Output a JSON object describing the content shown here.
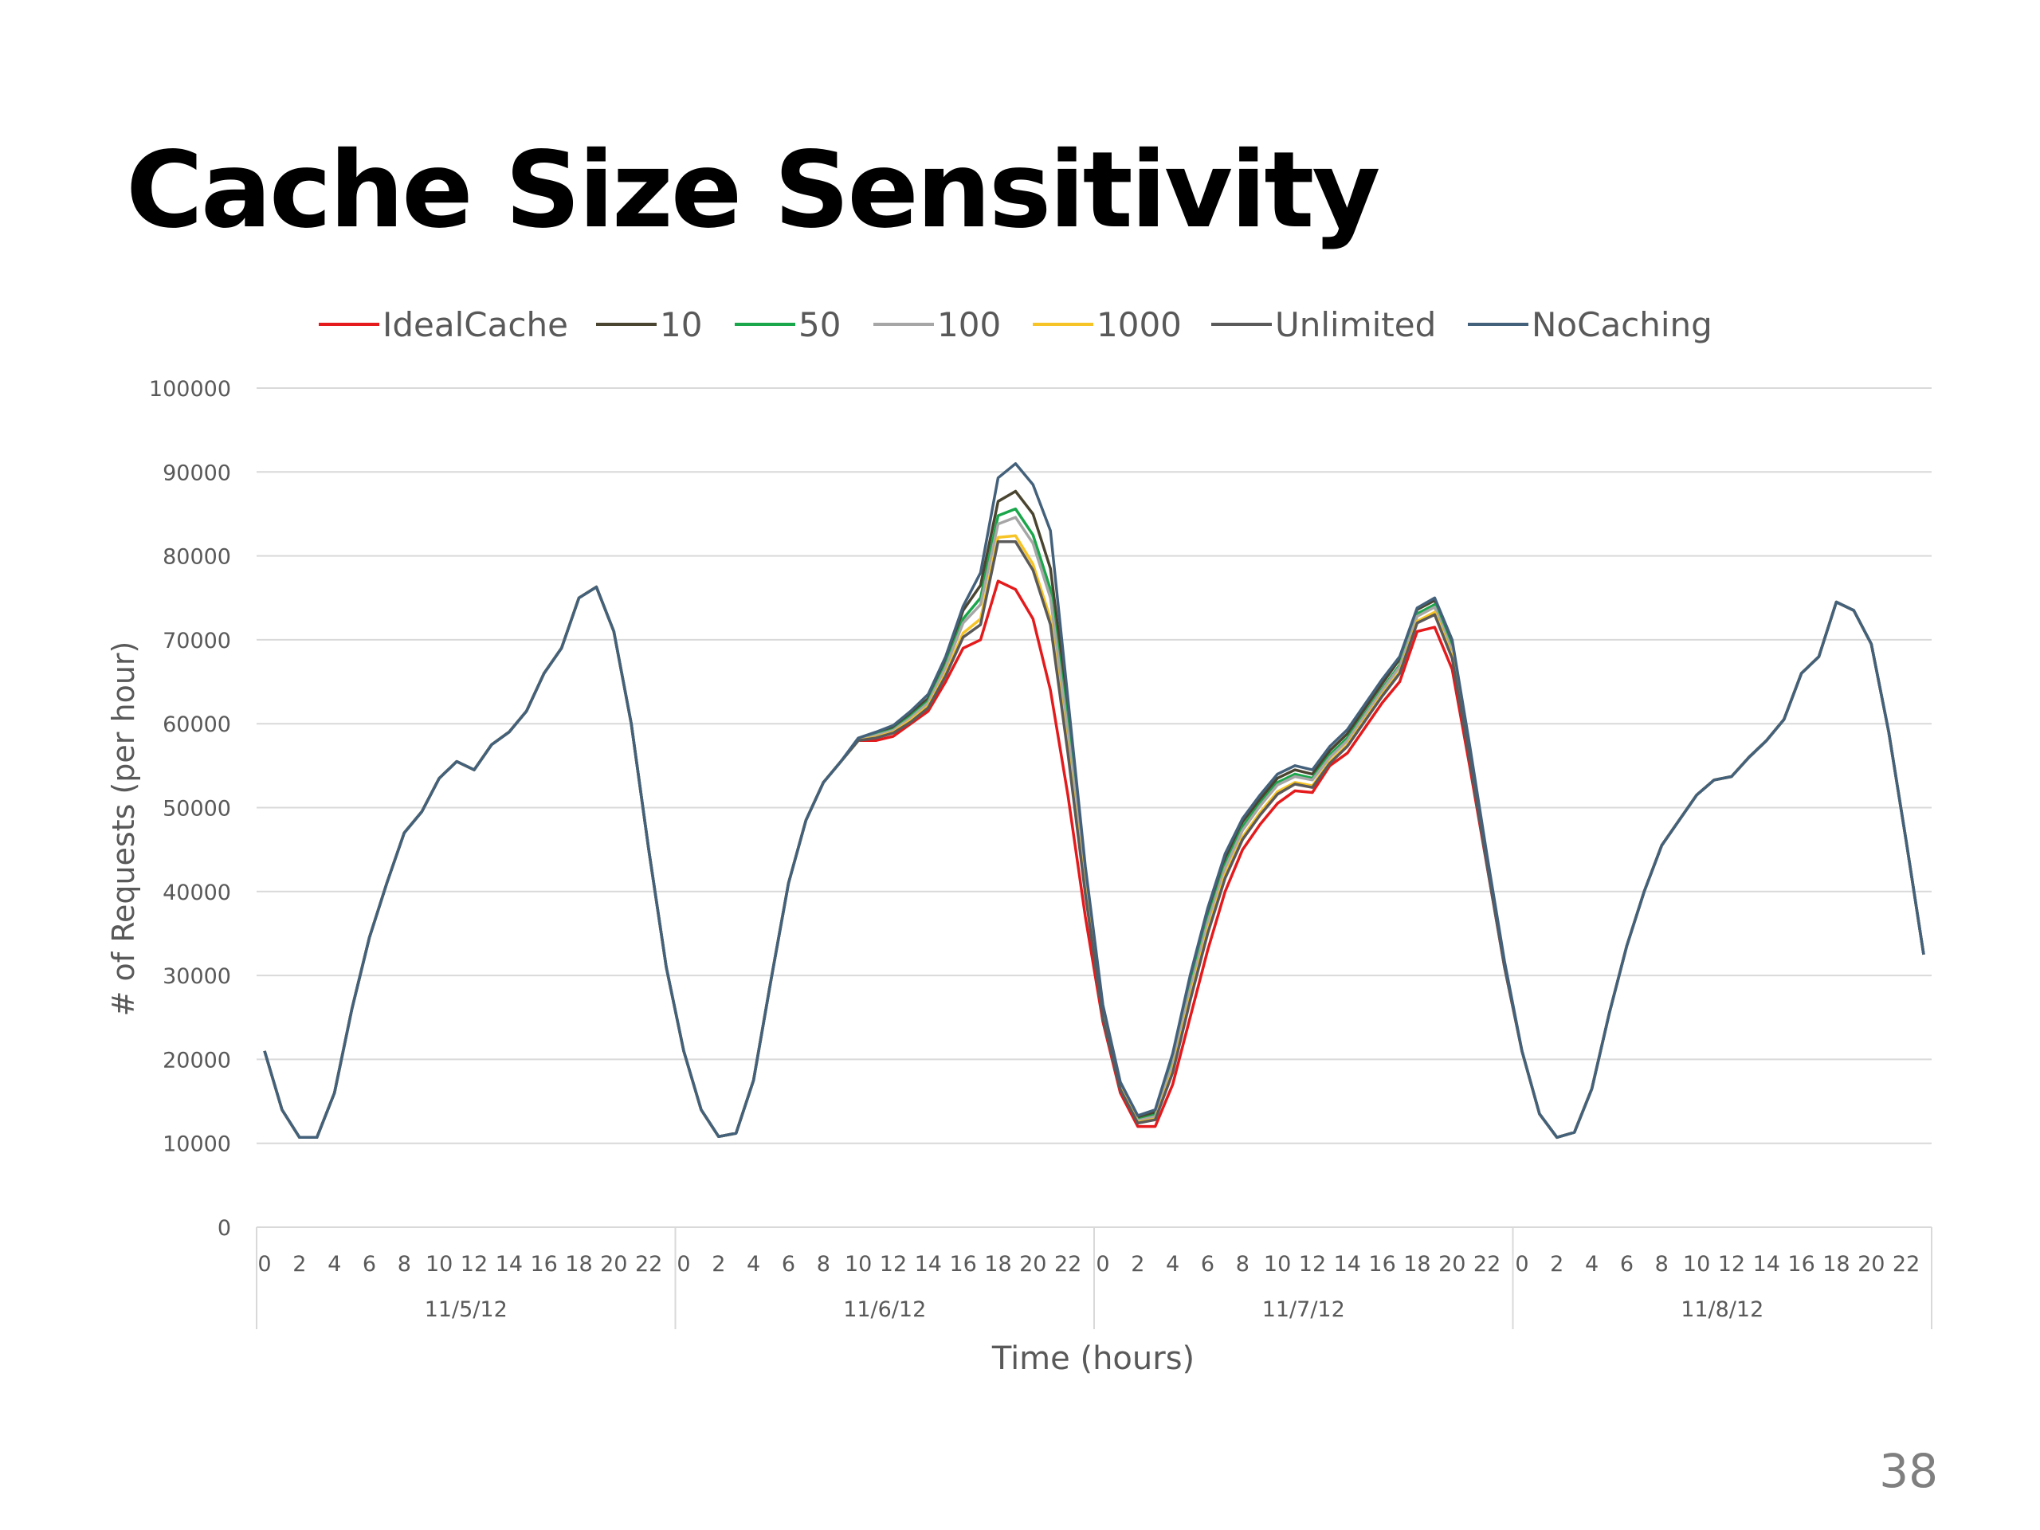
{
  "slide": {
    "title": "Cache Size Sensitivity",
    "page_number": "38"
  },
  "colors": {
    "IdealCache": "#e41a1c",
    "10": "#4a4530",
    "50": "#1aa64a",
    "100": "#a6a6a6",
    "1000": "#f6c426",
    "Unlimited": "#5a5a5a",
    "NoCaching": "#44617b",
    "grid": "#d9d9d9",
    "text": "#595959"
  },
  "chart_data": {
    "type": "line",
    "title": "",
    "xlabel": "Time (hours)",
    "ylabel": "# of Requests (per hour)",
    "ylim": [
      0,
      100000
    ],
    "yticks": [
      0,
      10000,
      20000,
      30000,
      40000,
      50000,
      60000,
      70000,
      80000,
      90000,
      100000
    ],
    "ytick_labels": [
      "0",
      "10000",
      "20000",
      "30000",
      "40000",
      "50000",
      "60000",
      "70000",
      "80000",
      "90000",
      "100000"
    ],
    "grid": true,
    "legend": "top",
    "hour_tick_labels": [
      "0",
      "2",
      "4",
      "6",
      "8",
      "10",
      "12",
      "14",
      "16",
      "18",
      "20",
      "22"
    ],
    "days": [
      "11/5/12",
      "11/6/12",
      "11/7/12",
      "11/8/12"
    ],
    "series": [
      {
        "name": "IdealCache",
        "values": [
          21000,
          14000,
          10700,
          10700,
          16000,
          26000,
          34500,
          41000,
          47000,
          49500,
          53500,
          55500,
          54500,
          57500,
          59000,
          61500,
          66000,
          69000,
          75000,
          76300,
          71000,
          60000,
          45000,
          31000,
          21000,
          14000,
          10800,
          11200,
          17500,
          29500,
          41000,
          48500,
          53000,
          55500,
          58000,
          58000,
          58500,
          60000,
          61500,
          65000,
          69000,
          70000,
          77000,
          76000,
          72500,
          64000,
          51500,
          37000,
          24500,
          16000,
          12000,
          12000,
          17000,
          25000,
          33000,
          40000,
          45000,
          48000,
          50500,
          52000,
          51800,
          55000,
          56500,
          59500,
          62500,
          65000,
          71000,
          71500,
          66500,
          55000,
          43000,
          31000,
          21000,
          13500,
          10700,
          11300,
          16500,
          25500,
          33500,
          40000,
          45500,
          48500,
          51500,
          53300,
          53700,
          56000,
          58000,
          60500,
          66000,
          68000,
          74500,
          73500,
          69500,
          59000,
          46000,
          32500
        ]
      },
      {
        "name": "10",
        "values": [
          21000,
          14000,
          10700,
          10700,
          16000,
          26000,
          34500,
          41000,
          47000,
          49500,
          53500,
          55500,
          54500,
          57500,
          59000,
          61500,
          66000,
          69000,
          75000,
          76300,
          71000,
          60000,
          45000,
          31000,
          21000,
          14000,
          10800,
          11200,
          17500,
          29500,
          41000,
          48500,
          53000,
          55500,
          58000,
          58800,
          59500,
          61200,
          63000,
          67500,
          73500,
          76500,
          86500,
          87700,
          85000,
          78500,
          62000,
          42500,
          26000,
          17000,
          13000,
          13700,
          20200,
          29500,
          37500,
          44000,
          48300,
          51000,
          53500,
          54500,
          54000,
          56800,
          58800,
          61800,
          64800,
          67700,
          73600,
          74700,
          69500,
          57000,
          44000,
          31500,
          21000,
          13500,
          10700,
          11300,
          16500,
          25500,
          33500,
          40000,
          45500,
          48500,
          51500,
          53300,
          53700,
          56000,
          58000,
          60500,
          66000,
          68000,
          74500,
          73500,
          69500,
          59000,
          46000,
          32500
        ]
      },
      {
        "name": "50",
        "values": [
          21000,
          14000,
          10700,
          10700,
          16000,
          26000,
          34500,
          41000,
          47000,
          49500,
          53500,
          55500,
          54500,
          57500,
          59000,
          61500,
          66000,
          69000,
          75000,
          76300,
          71000,
          60000,
          45000,
          31000,
          21000,
          14000,
          10800,
          11200,
          17500,
          29500,
          41000,
          48500,
          53000,
          55500,
          58000,
          58700,
          59300,
          60900,
          62700,
          67000,
          72500,
          75000,
          84800,
          85600,
          82500,
          76000,
          60000,
          41500,
          25500,
          16800,
          12800,
          13400,
          19700,
          28700,
          36700,
          43200,
          47700,
          50500,
          53000,
          54000,
          53500,
          56300,
          58300,
          61200,
          64200,
          67000,
          73100,
          74200,
          69000,
          56600,
          43700,
          31300,
          21000,
          13500,
          10700,
          11300,
          16500,
          25500,
          33500,
          40000,
          45500,
          48500,
          51500,
          53300,
          53700,
          56000,
          58000,
          60500,
          66000,
          68000,
          74500,
          73500,
          69500,
          59000,
          46000,
          32500
        ]
      },
      {
        "name": "100",
        "values": [
          21000,
          14000,
          10700,
          10700,
          16000,
          26000,
          34500,
          41000,
          47000,
          49500,
          53500,
          55500,
          54500,
          57500,
          59000,
          61500,
          66000,
          69000,
          75000,
          76300,
          71000,
          60000,
          45000,
          31000,
          21000,
          14000,
          10800,
          11200,
          17500,
          29500,
          41000,
          48500,
          53000,
          55500,
          58000,
          58600,
          59200,
          60700,
          62500,
          66700,
          72000,
          74200,
          83800,
          84600,
          81500,
          75000,
          59000,
          41000,
          25300,
          16700,
          12700,
          13200,
          19400,
          28300,
          36300,
          42800,
          47300,
          50200,
          52700,
          53700,
          53300,
          56000,
          58000,
          61000,
          64000,
          66800,
          72800,
          73900,
          68700,
          56400,
          43500,
          31200,
          21000,
          13500,
          10700,
          11300,
          16500,
          25500,
          33500,
          40000,
          45500,
          48500,
          51500,
          53300,
          53700,
          56000,
          58000,
          60500,
          66000,
          68000,
          74500,
          73500,
          69500,
          59000,
          46000,
          32500
        ]
      },
      {
        "name": "1000",
        "values": [
          21000,
          14000,
          10700,
          10700,
          16000,
          26000,
          34500,
          41000,
          47000,
          49500,
          53500,
          55500,
          54500,
          57500,
          59000,
          61500,
          66000,
          69000,
          75000,
          76300,
          71000,
          60000,
          45000,
          31000,
          21000,
          14000,
          10800,
          11200,
          17500,
          29500,
          41000,
          48500,
          53000,
          55500,
          58000,
          58400,
          59000,
          60400,
          62100,
          66000,
          70800,
          72500,
          82200,
          82400,
          79000,
          72500,
          57000,
          40000,
          25000,
          16500,
          12500,
          12900,
          18700,
          27400,
          35400,
          42000,
          46500,
          49400,
          51900,
          53000,
          52600,
          55500,
          57500,
          60500,
          63500,
          66200,
          72200,
          73300,
          68100,
          56000,
          43300,
          31100,
          21000,
          13500,
          10700,
          11300,
          16500,
          25500,
          33500,
          40000,
          45500,
          48500,
          51500,
          53300,
          53700,
          56000,
          58000,
          60500,
          66000,
          68000,
          74500,
          73500,
          69500,
          59000,
          46000,
          32500
        ]
      },
      {
        "name": "Unlimited",
        "values": [
          21000,
          14000,
          10700,
          10700,
          16000,
          26000,
          34500,
          41000,
          47000,
          49500,
          53500,
          55500,
          54500,
          57500,
          59000,
          61500,
          66000,
          69000,
          75000,
          76300,
          71000,
          60000,
          45000,
          31000,
          21000,
          14000,
          10800,
          11200,
          17500,
          29500,
          41000,
          48500,
          53000,
          55500,
          58000,
          58300,
          58900,
          60200,
          61900,
          65700,
          70300,
          71800,
          81700,
          81700,
          78300,
          71800,
          56500,
          39700,
          24900,
          16400,
          12400,
          12800,
          18400,
          27000,
          35000,
          41600,
          46200,
          49100,
          51600,
          52800,
          52400,
          55300,
          57300,
          60300,
          63300,
          66000,
          72000,
          73000,
          67800,
          55800,
          43100,
          31000,
          21000,
          13500,
          10700,
          11300,
          16500,
          25500,
          33500,
          40000,
          45500,
          48500,
          51500,
          53300,
          53700,
          56000,
          58000,
          60500,
          66000,
          68000,
          74500,
          73500,
          69500,
          59000,
          46000,
          32500
        ]
      },
      {
        "name": "NoCaching",
        "values": [
          21000,
          14000,
          10700,
          10700,
          16000,
          26000,
          34500,
          41000,
          47000,
          49500,
          53500,
          55500,
          54500,
          57500,
          59000,
          61500,
          66000,
          69000,
          75000,
          76300,
          71000,
          60000,
          45000,
          31000,
          21000,
          14000,
          10800,
          11200,
          17500,
          29500,
          41000,
          48500,
          53000,
          55500,
          58300,
          59000,
          59800,
          61500,
          63500,
          68000,
          74000,
          78000,
          89300,
          91000,
          88500,
          83000,
          63000,
          43000,
          26500,
          17300,
          13300,
          14000,
          20700,
          30000,
          38000,
          44500,
          48700,
          51500,
          54000,
          55000,
          54500,
          57300,
          59300,
          62300,
          65300,
          68000,
          73800,
          75000,
          70000,
          57500,
          44300,
          31700,
          21000,
          13500,
          10700,
          11300,
          16500,
          25500,
          33500,
          40000,
          45500,
          48500,
          51500,
          53300,
          53700,
          56000,
          58000,
          60500,
          66000,
          68000,
          74500,
          73500,
          69500,
          59000,
          46000,
          32500
        ]
      }
    ]
  }
}
